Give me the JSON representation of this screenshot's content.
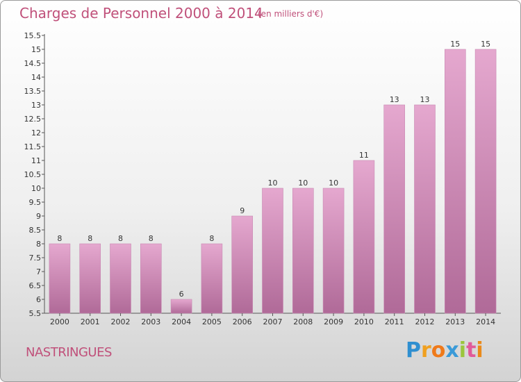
{
  "header": {
    "title": "Charges de Personnel 2000 à 2014",
    "subtitle": "(en milliers d'€)"
  },
  "footer": {
    "town": "NASTRINGUES",
    "logo_letters": [
      "P",
      "r",
      "o",
      "x",
      "i",
      "t",
      "i"
    ]
  },
  "colors": {
    "bar_top": "#e5a8cf",
    "bar_bottom": "#b06a98",
    "title": "#c0507a"
  },
  "chart_data": {
    "type": "bar",
    "title": "Charges de Personnel 2000 à 2014",
    "subtitle": "(en milliers d'€)",
    "categories": [
      "2000",
      "2001",
      "2002",
      "2003",
      "2004",
      "2005",
      "2006",
      "2007",
      "2008",
      "2009",
      "2010",
      "2011",
      "2012",
      "2013",
      "2014"
    ],
    "values": [
      8,
      8,
      8,
      8,
      6,
      8,
      9,
      10,
      10,
      10,
      11,
      13,
      13,
      15,
      15
    ],
    "ylim": [
      5.5,
      15.5
    ],
    "yticks": [
      "5.5",
      "6",
      "6.5",
      "7",
      "7.5",
      "8",
      "8.5",
      "9",
      "9.5",
      "10",
      "10.5",
      "11",
      "11.5",
      "12",
      "12.5",
      "13",
      "13.5",
      "14",
      "14.5",
      "15",
      "15.5"
    ],
    "grid": false,
    "xlabel": "",
    "ylabel": ""
  }
}
